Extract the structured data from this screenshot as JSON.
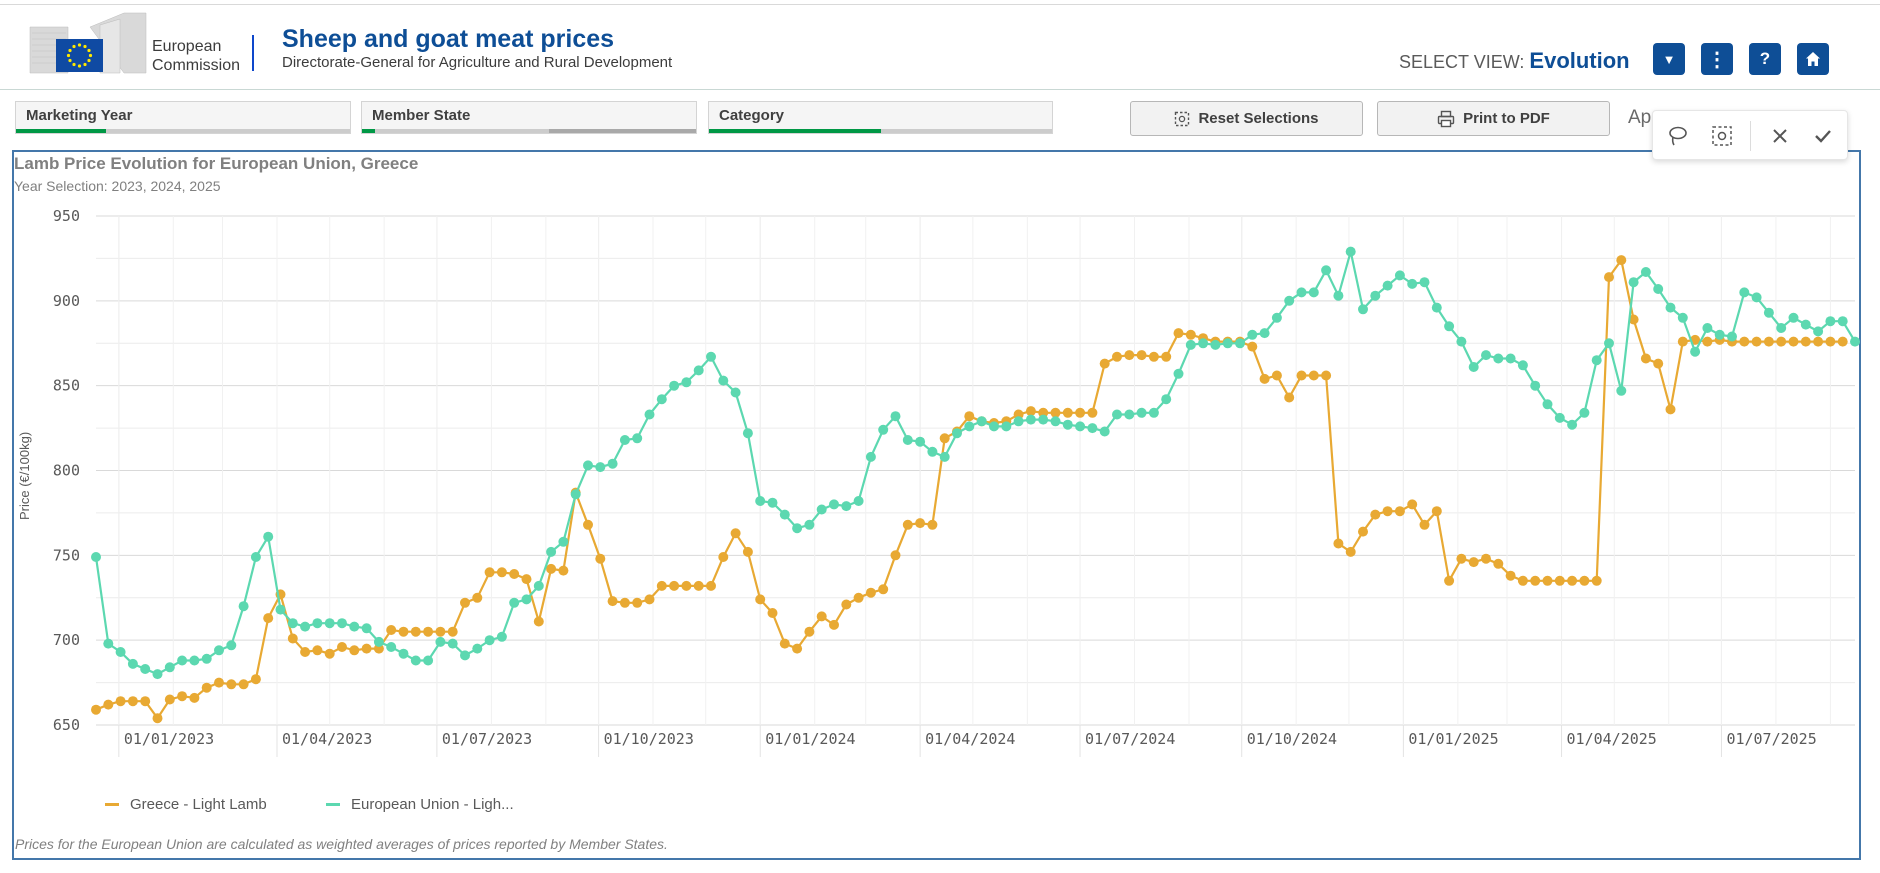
{
  "header": {
    "org_line1": "European",
    "org_line2": "Commission",
    "title": "Sheep and goat meat prices",
    "subtitle": "Directorate-General for Agriculture and Rural Development",
    "select_view_label": "SELECT VIEW:",
    "select_view_value": "Evolution",
    "buttons": [
      {
        "name": "dropdown-button",
        "icon": "triangle-down-icon",
        "glyph": "▼"
      },
      {
        "name": "menu-button",
        "icon": "vertical-dots-icon",
        "glyph": "⋮"
      },
      {
        "name": "help-button",
        "icon": "question-icon",
        "glyph": "?"
      },
      {
        "name": "home-button",
        "icon": "home-icon",
        "glyph": ""
      }
    ]
  },
  "filters": [
    {
      "label": "Marketing Year",
      "green": 0.27,
      "grey_start": null
    },
    {
      "label": "Member State",
      "green": 0.03,
      "grey_start": 0.56
    },
    {
      "label": "Category",
      "green": 0.5,
      "grey_start": null
    }
  ],
  "toolbar_buttons": {
    "reset": "Reset Selections",
    "print": "Print to PDF",
    "app_cut": "Ap"
  },
  "chart_data": {
    "type": "line",
    "title": "Lamb Price Evolution for European Union, Greece",
    "subtitle": "Year Selection: 2023, 2024, 2025",
    "ylabel": "Price (€/100kg)",
    "ylim": [
      650,
      950
    ],
    "yticks": [
      650,
      700,
      750,
      800,
      850,
      900,
      950
    ],
    "x_start": "2022-12-19",
    "step_days": 7,
    "xtick_labels": [
      "01/01/2023",
      "01/04/2023",
      "01/07/2023",
      "01/10/2023",
      "01/01/2024",
      "01/04/2024",
      "01/07/2024",
      "01/10/2024",
      "01/01/2025",
      "01/04/2025",
      "01/07/2025"
    ],
    "grid": true,
    "legend_position": "bottom-left",
    "series": [
      {
        "name": "Greece - Light Lamb",
        "color": "#e8a933",
        "values": [
          659,
          662,
          664,
          664,
          664,
          654,
          665,
          667,
          666,
          672,
          675,
          674,
          674,
          677,
          713,
          727,
          701,
          693,
          694,
          692,
          696,
          694,
          695,
          695,
          706,
          705,
          705,
          705,
          705,
          705,
          722,
          725,
          740,
          740,
          739,
          736,
          711,
          742,
          741,
          787,
          768,
          748,
          723,
          722,
          722,
          724,
          732,
          732,
          732,
          732,
          732,
          749,
          763,
          752,
          724,
          716,
          698,
          695,
          705,
          714,
          709,
          721,
          725,
          728,
          730,
          750,
          768,
          769,
          768,
          819,
          823,
          832,
          829,
          828,
          829,
          833,
          835,
          834,
          834,
          834,
          834,
          834,
          863,
          867,
          868,
          868,
          867,
          867,
          881,
          880,
          878,
          876,
          876,
          876,
          873,
          854,
          856,
          843,
          856,
          856,
          856,
          757,
          752,
          764,
          774,
          776,
          776,
          780,
          768,
          776,
          735,
          748,
          746,
          748,
          745,
          738,
          735,
          735,
          735,
          735,
          735,
          735,
          735,
          914,
          924,
          889,
          866,
          863,
          836,
          876,
          877,
          876,
          877,
          876,
          876,
          876,
          876,
          876,
          876,
          876,
          876,
          876,
          876
        ]
      },
      {
        "name": "European Union - Ligh...",
        "color": "#5cd8b0",
        "values": [
          749,
          698,
          693,
          686,
          683,
          680,
          684,
          688,
          688,
          689,
          694,
          697,
          720,
          749,
          761,
          718,
          710,
          708,
          710,
          710,
          710,
          708,
          707,
          699,
          696,
          692,
          688,
          688,
          699,
          698,
          691,
          695,
          700,
          702,
          722,
          724,
          732,
          752,
          758,
          786,
          803,
          802,
          804,
          818,
          819,
          833,
          842,
          850,
          852,
          859,
          867,
          853,
          846,
          822,
          782,
          781,
          774,
          766,
          768,
          777,
          780,
          779,
          782,
          808,
          824,
          832,
          818,
          817,
          811,
          808,
          822,
          826,
          829,
          826,
          826,
          829,
          830,
          830,
          829,
          827,
          826,
          825,
          823,
          833,
          833,
          834,
          834,
          842,
          857,
          874,
          875,
          874,
          875,
          875,
          880,
          881,
          890,
          900,
          905,
          905,
          918,
          903,
          929,
          895,
          903,
          909,
          915,
          910,
          911,
          896,
          885,
          876,
          861,
          868,
          866,
          866,
          862,
          850,
          839,
          831,
          827,
          834,
          865,
          875,
          847,
          911,
          917,
          907,
          896,
          890,
          870,
          884,
          880,
          879,
          905,
          902,
          893,
          884,
          890,
          886,
          882,
          888,
          888,
          876
        ]
      }
    ]
  },
  "footnote": "Prices for the European Union are calculated as weighted averages of prices reported by Member States."
}
